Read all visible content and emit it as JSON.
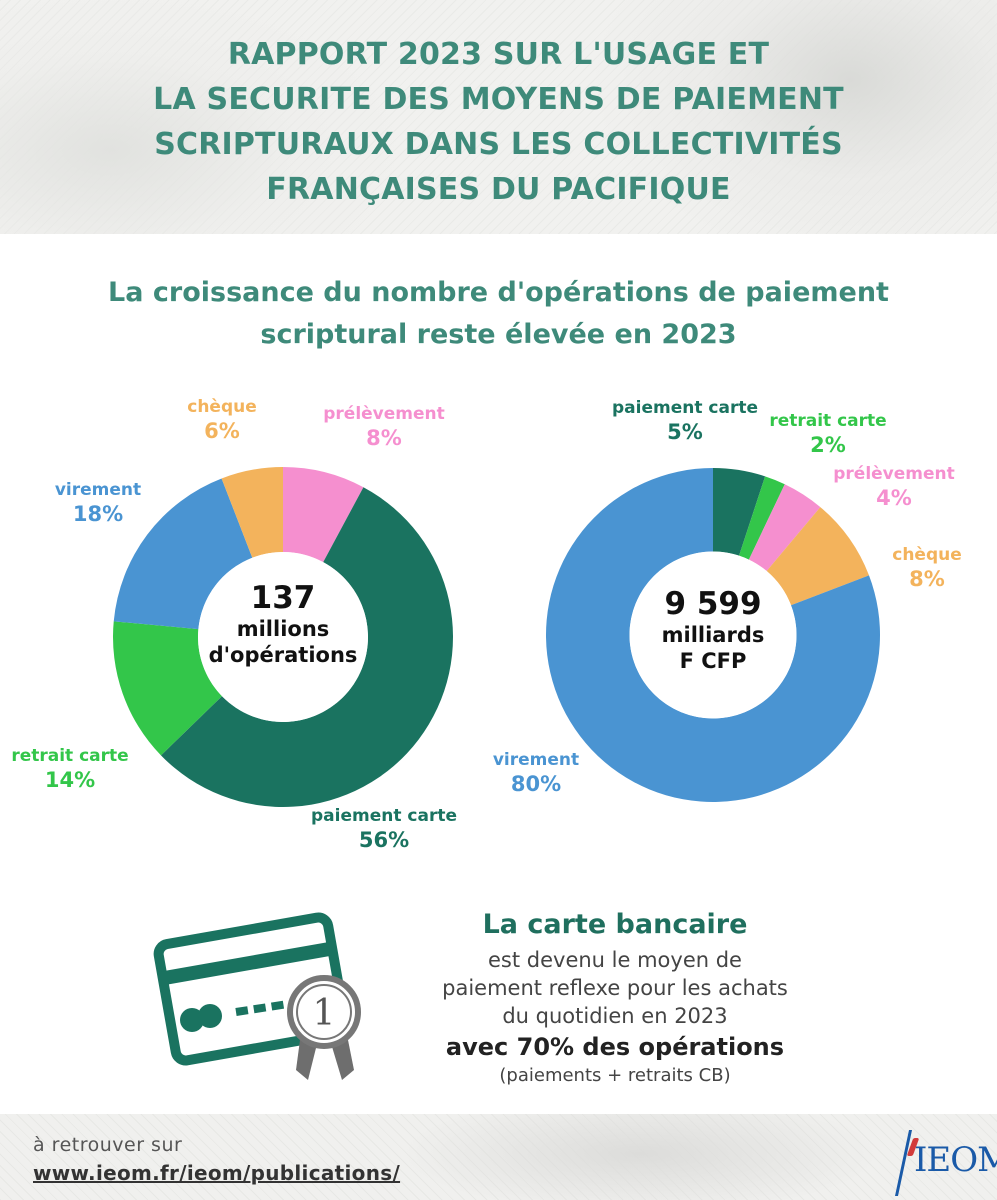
{
  "header": {
    "title_lines": [
      "RAPPORT 2023 SUR L'USAGE ET",
      "LA SECURITE DES MOYENS DE PAIEMENT",
      "SCRIPTURAUX DANS LES COLLECTIVITÉS",
      "FRANÇAISES DU PACIFIQUE"
    ]
  },
  "subtitle_lines": [
    "La croissance du nombre d'opérations de paiement",
    "scriptural reste élevée en 2023"
  ],
  "colors": {
    "paiement_carte": "#1a7360",
    "retrait_carte": "#33c64a",
    "virement": "#4a94d2",
    "cheque": "#f3b35c",
    "prelevement": "#f58fcf",
    "title": "#3e8a7a"
  },
  "chart_data": [
    {
      "type": "pie",
      "variant": "donut",
      "center_text": [
        "137",
        "millions",
        "d'opérations"
      ],
      "categories": [
        "paiement carte",
        "retrait carte",
        "virement",
        "chèque",
        "prélèvement"
      ],
      "values": [
        56,
        14,
        18,
        6,
        8
      ],
      "labels": [
        "56%",
        "14%",
        "18%",
        "6%",
        "8%"
      ],
      "unit": "%"
    },
    {
      "type": "pie",
      "variant": "donut",
      "center_text": [
        "9 599",
        "milliards",
        "F CFP"
      ],
      "categories": [
        "paiement carte",
        "retrait carte",
        "prélèvement",
        "chèque",
        "virement"
      ],
      "values": [
        5,
        2,
        4,
        8,
        80
      ],
      "labels": [
        "5%",
        "2%",
        "4%",
        "8%",
        "80%"
      ],
      "unit": "%"
    }
  ],
  "card_block": {
    "headline": "La carte bancaire",
    "lines": [
      "est devenu le moyen de",
      "paiement reflexe pour les achats",
      "du quotidien en 2023"
    ],
    "strong": "avec 70% des opérations",
    "note": "(paiements + retraits CB)",
    "badge_number": "1",
    "icon": "bank-card-award-icon"
  },
  "footer": {
    "pre": "à retrouver sur",
    "link": "www.ieom.fr/ieom/publications/",
    "logo_text": "IEOM"
  }
}
